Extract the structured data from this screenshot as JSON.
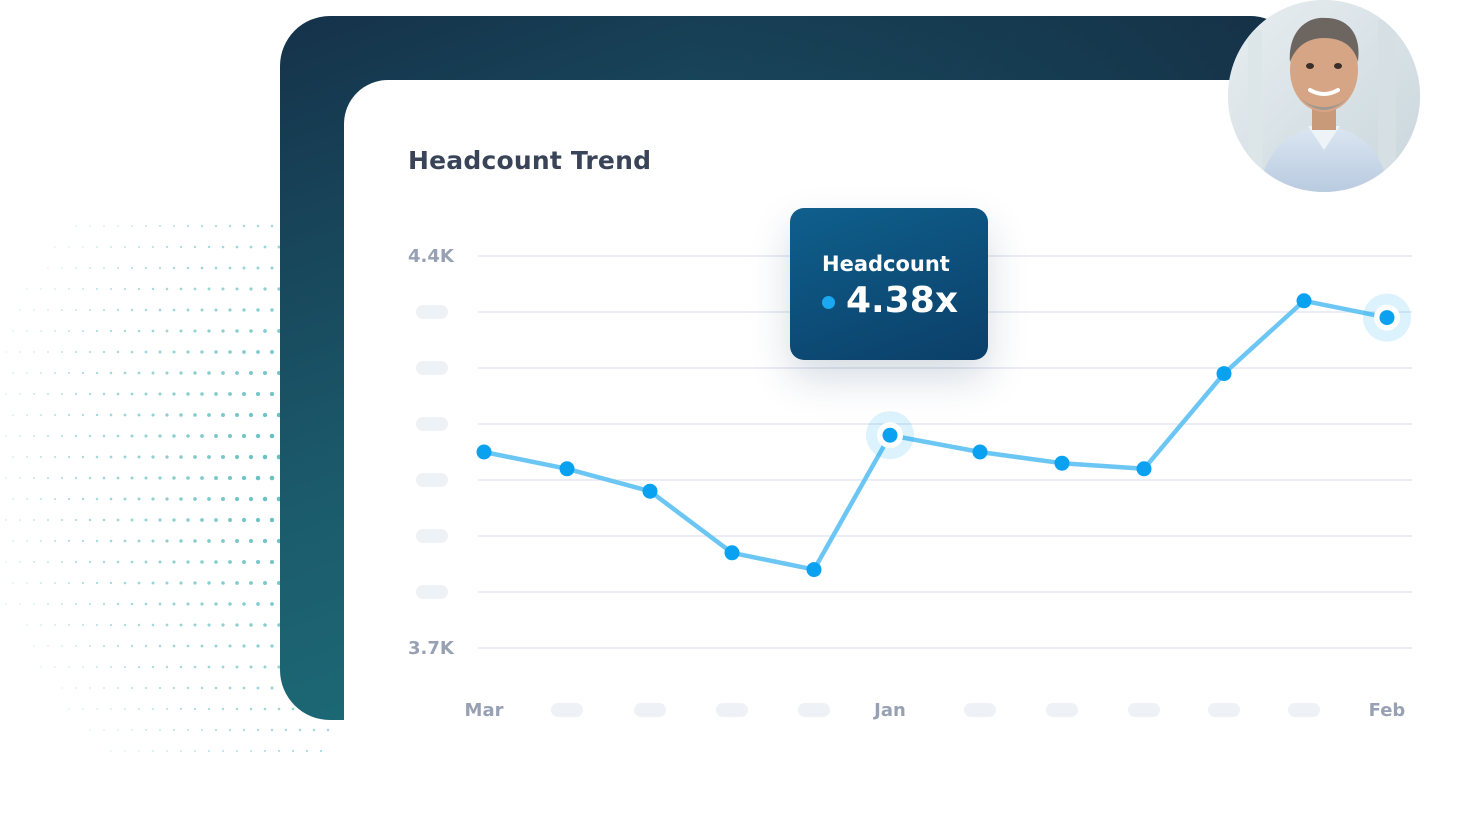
{
  "card": {
    "title": "Headcount Trend"
  },
  "tooltip": {
    "label": "Headcount",
    "value": "4.38x"
  },
  "avatar": {
    "alt": "person-photo"
  },
  "colors": {
    "line": "#6cc6f4",
    "point": "#0aa2f0",
    "grid": "#e4e8f0",
    "tick": "#98a1b3",
    "placeholder": "#eef1f6",
    "tooltip_top": "#0f5f8d",
    "tooltip_bottom": "#0b3f68",
    "panel_dark": "#15324a",
    "panel_teal": "#1f7b84"
  },
  "chart_data": {
    "type": "line",
    "title": "Headcount Trend",
    "xlabel": "",
    "ylabel": "",
    "x_tick_labels": [
      "Mar",
      "",
      "",
      "",
      "",
      "Jan",
      "",
      "",
      "",
      "",
      "",
      "Feb"
    ],
    "y_tick_labels": [
      "4.4K",
      "",
      "",
      "",
      "",
      "",
      "",
      "3.7K"
    ],
    "ylim": [
      3.7,
      4.4
    ],
    "grid": true,
    "series": [
      {
        "values": [
          4.05,
          4.02,
          3.98,
          3.87,
          3.84,
          4.08,
          4.05,
          4.03,
          4.02,
          4.19,
          4.32,
          4.29
        ]
      }
    ],
    "highlighted_points": [
      5,
      11
    ]
  }
}
